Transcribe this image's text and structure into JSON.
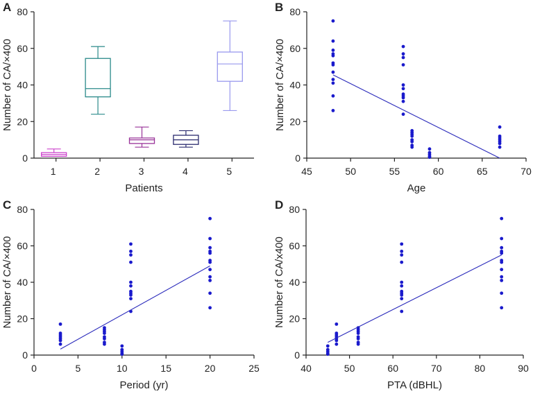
{
  "chart_data": [
    {
      "panel": "A",
      "type": "box",
      "xlabel": "Patients",
      "ylabel": "Number of CA/×400",
      "ylim": [
        0,
        80
      ],
      "yticks": [
        0,
        20,
        40,
        60,
        80
      ],
      "categories": [
        "1",
        "2",
        "3",
        "4",
        "5"
      ],
      "boxes": [
        {
          "min": 1,
          "q1": 1,
          "median": 2,
          "q3": 3,
          "max": 5,
          "color": "#cc44cc"
        },
        {
          "min": 24,
          "q1": 33.5,
          "median": 38,
          "q3": 54.5,
          "max": 61,
          "color": "#2a8a8a"
        },
        {
          "min": 6,
          "q1": 8,
          "median": 10,
          "q3": 11,
          "max": 17,
          "color": "#993399"
        },
        {
          "min": 6,
          "q1": 7.5,
          "median": 10,
          "q3": 12.5,
          "max": 15,
          "color": "#2a2a6e"
        },
        {
          "min": 26,
          "q1": 42,
          "median": 51.5,
          "q3": 58,
          "max": 75,
          "color": "#9999ee"
        }
      ]
    },
    {
      "panel": "B",
      "type": "scatter",
      "xlabel": "Age",
      "ylabel": "Number of CA/×400",
      "xlim": [
        45,
        70
      ],
      "xticks": [
        45,
        50,
        55,
        60,
        65,
        70
      ],
      "ylim": [
        0,
        80
      ],
      "yticks": [
        0,
        20,
        40,
        60,
        80
      ],
      "color": "#1a1acc",
      "groups": [
        {
          "x": 48,
          "y": [
            75,
            64,
            59,
            57,
            56,
            52,
            51,
            47,
            43,
            41,
            34,
            26
          ]
        },
        {
          "x": 56,
          "y": [
            61,
            57,
            55,
            51,
            40,
            38,
            35,
            34,
            33,
            31,
            24
          ]
        },
        {
          "x": 57,
          "y": [
            15,
            14,
            13,
            12,
            10,
            9,
            7,
            6
          ]
        },
        {
          "x": 59,
          "y": [
            5,
            3,
            2,
            1,
            0.5
          ]
        },
        {
          "x": 67,
          "y": [
            17,
            12,
            11,
            10,
            9,
            8,
            6
          ]
        }
      ],
      "fit_line": [
        [
          48,
          45.5
        ],
        [
          67,
          0
        ]
      ]
    },
    {
      "panel": "C",
      "type": "scatter",
      "xlabel": "Period (yr)",
      "ylabel": "Number of CA/×400",
      "xlim": [
        0,
        25
      ],
      "xticks": [
        0,
        5,
        10,
        15,
        20,
        25
      ],
      "ylim": [
        0,
        80
      ],
      "yticks": [
        0,
        20,
        40,
        60,
        80
      ],
      "color": "#1a1acc",
      "groups": [
        {
          "x": 20,
          "y": [
            75,
            64,
            59,
            57,
            56,
            52,
            51,
            47,
            43,
            41,
            34,
            26
          ]
        },
        {
          "x": 11,
          "y": [
            61,
            57,
            55,
            51,
            40,
            38,
            35,
            34,
            33,
            31,
            24
          ]
        },
        {
          "x": 8,
          "y": [
            15,
            14,
            13,
            12,
            10,
            9,
            7,
            6
          ]
        },
        {
          "x": 10,
          "y": [
            5,
            3,
            2,
            1,
            0.5
          ]
        },
        {
          "x": 3,
          "y": [
            17,
            12,
            11,
            10,
            9,
            8,
            6
          ]
        }
      ],
      "fit_line": [
        [
          3,
          3.3
        ],
        [
          20,
          49
        ]
      ]
    },
    {
      "panel": "D",
      "type": "scatter",
      "xlabel": "PTA (dBHL)",
      "ylabel": "Number of CA/x400",
      "xlim": [
        40,
        90
      ],
      "xticks": [
        40,
        50,
        60,
        70,
        80,
        90
      ],
      "ylim": [
        0,
        80
      ],
      "yticks": [
        0,
        20,
        40,
        60,
        80
      ],
      "color": "#1a1acc",
      "groups": [
        {
          "x": 85,
          "y": [
            75,
            64,
            59,
            57,
            56,
            52,
            51,
            47,
            43,
            41,
            34,
            26
          ]
        },
        {
          "x": 62,
          "y": [
            61,
            57,
            55,
            51,
            40,
            38,
            35,
            34,
            33,
            31,
            24
          ]
        },
        {
          "x": 52,
          "y": [
            15,
            14,
            13,
            12,
            10,
            9,
            7,
            6
          ]
        },
        {
          "x": 45,
          "y": [
            5,
            3,
            2,
            1,
            0.5
          ]
        },
        {
          "x": 47,
          "y": [
            17,
            12,
            11,
            10,
            9,
            8,
            6
          ]
        }
      ],
      "fit_line": [
        [
          45,
          7
        ],
        [
          85,
          55
        ]
      ]
    }
  ]
}
